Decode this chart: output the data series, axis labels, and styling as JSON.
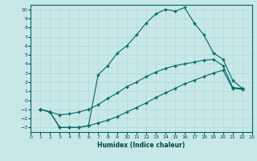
{
  "xlabel": "Humidex (Indice chaleur)",
  "bg_color": "#c8e8e8",
  "grid_color": "#b0d8d8",
  "line_color": "#006868",
  "xlim": [
    0,
    23
  ],
  "ylim": [
    -3.5,
    10.5
  ],
  "xticks": [
    0,
    1,
    2,
    3,
    4,
    5,
    6,
    7,
    8,
    9,
    10,
    11,
    12,
    13,
    14,
    15,
    16,
    17,
    18,
    19,
    20,
    21,
    22,
    23
  ],
  "yticks": [
    -3,
    -2,
    -1,
    0,
    1,
    2,
    3,
    4,
    5,
    6,
    7,
    8,
    9,
    10
  ],
  "line1_x": [
    1,
    2,
    3,
    4,
    5,
    6,
    7,
    8,
    9,
    10,
    11,
    12,
    13,
    14,
    15,
    16,
    17,
    18,
    19,
    20,
    21,
    22
  ],
  "line1_y": [
    -1,
    -1.3,
    -1.6,
    -1.5,
    -1.3,
    -1.0,
    -0.5,
    0.2,
    0.8,
    1.5,
    2.0,
    2.6,
    3.1,
    3.5,
    3.8,
    4.0,
    4.2,
    4.4,
    4.5,
    3.8,
    1.4,
    1.3
  ],
  "line2_x": [
    1,
    2,
    3,
    4,
    5,
    6,
    7,
    8,
    9,
    10,
    11,
    12,
    13,
    14,
    15,
    16,
    17,
    18,
    19,
    20,
    21,
    22
  ],
  "line2_y": [
    -1,
    -1.3,
    -3.0,
    -3.0,
    -3.0,
    -2.8,
    2.8,
    3.8,
    5.2,
    6.0,
    7.2,
    8.5,
    9.5,
    10.0,
    9.8,
    10.2,
    8.5,
    7.2,
    5.2,
    4.5,
    2.2,
    1.3
  ],
  "line3_x": [
    1,
    2,
    3,
    4,
    5,
    6,
    7,
    8,
    9,
    10,
    11,
    12,
    13,
    14,
    15,
    16,
    17,
    18,
    19,
    20,
    21,
    22
  ],
  "line3_y": [
    -1,
    -1.3,
    -3.0,
    -3.0,
    -3.0,
    -2.8,
    -2.5,
    -2.2,
    -1.8,
    -1.3,
    -0.8,
    -0.3,
    0.3,
    0.8,
    1.3,
    1.8,
    2.2,
    2.6,
    3.0,
    3.3,
    1.3,
    1.2
  ]
}
